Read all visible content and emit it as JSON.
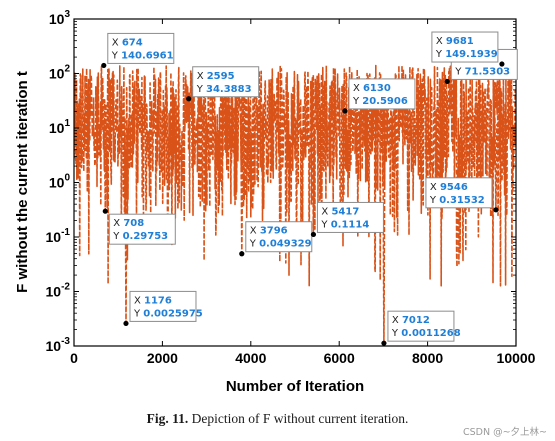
{
  "chart_data": {
    "type": "line",
    "xlabel": "Number of Iteration",
    "ylabel": "F without the current iteration t",
    "xlim": [
      0,
      10000
    ],
    "ylim": [
      0.001,
      1000
    ],
    "yscale": "log",
    "grid": false,
    "series_color": "#d95319",
    "xticks": [
      {
        "value": 0,
        "label": "0"
      },
      {
        "value": 2000,
        "label": "2000"
      },
      {
        "value": 4000,
        "label": "4000"
      },
      {
        "value": 6000,
        "label": "6000"
      },
      {
        "value": 8000,
        "label": "8000"
      },
      {
        "value": 10000,
        "label": "10000"
      }
    ],
    "yticks": [
      {
        "value": 0.001,
        "base": "10",
        "exp": "-3"
      },
      {
        "value": 0.01,
        "base": "10",
        "exp": "-2"
      },
      {
        "value": 0.1,
        "base": "10",
        "exp": "-1"
      },
      {
        "value": 1,
        "base": "10",
        "exp": "0"
      },
      {
        "value": 10,
        "base": "10",
        "exp": "1"
      },
      {
        "value": 100,
        "base": "10",
        "exp": "2"
      },
      {
        "value": 1000,
        "base": "10",
        "exp": "3"
      }
    ],
    "datatips": [
      {
        "x": 674,
        "y": 140.6961,
        "xtext": "674",
        "ytext": "140.6961",
        "side": "upper-right"
      },
      {
        "x": 2595,
        "y": 34.3883,
        "xtext": "2595",
        "ytext": "34.3883",
        "side": "upper-right"
      },
      {
        "x": 6130,
        "y": 20.5906,
        "xtext": "6130",
        "ytext": "20.5906",
        "side": "upper-right"
      },
      {
        "x": 8445,
        "y": 71.5303,
        "xtext": "",
        "ytext": "71.5303",
        "side": "upper-right"
      },
      {
        "x": 9681,
        "y": 149.1939,
        "xtext": "9681",
        "ytext": "149.1939",
        "side": "upper-left"
      },
      {
        "x": 708,
        "y": 0.29753,
        "xtext": "708",
        "ytext": "0.29753",
        "side": "lower-right"
      },
      {
        "x": 1176,
        "y": 0.0025975,
        "xtext": "1176",
        "ytext": "0.0025975",
        "side": "upper-right"
      },
      {
        "x": 3796,
        "y": 0.049329,
        "xtext": "3796",
        "ytext": "0.049329",
        "side": "upper-right"
      },
      {
        "x": 5417,
        "y": 0.1114,
        "xtext": "5417",
        "ytext": "0.1114",
        "side": "upper-right"
      },
      {
        "x": 7012,
        "y": 0.0011268,
        "xtext": "7012",
        "ytext": "0.0011268",
        "side": "upper-right"
      },
      {
        "x": 9546,
        "y": 0.31532,
        "xtext": "9546",
        "ytext": "0.31532",
        "side": "upper-left"
      }
    ],
    "tip_x_key": "X",
    "tip_y_key": "Y"
  },
  "caption": {
    "fig_label": "Fig. 11.",
    "text": "Depiction of F without current iteration."
  },
  "watermark": "CSDN @~夕上林~"
}
